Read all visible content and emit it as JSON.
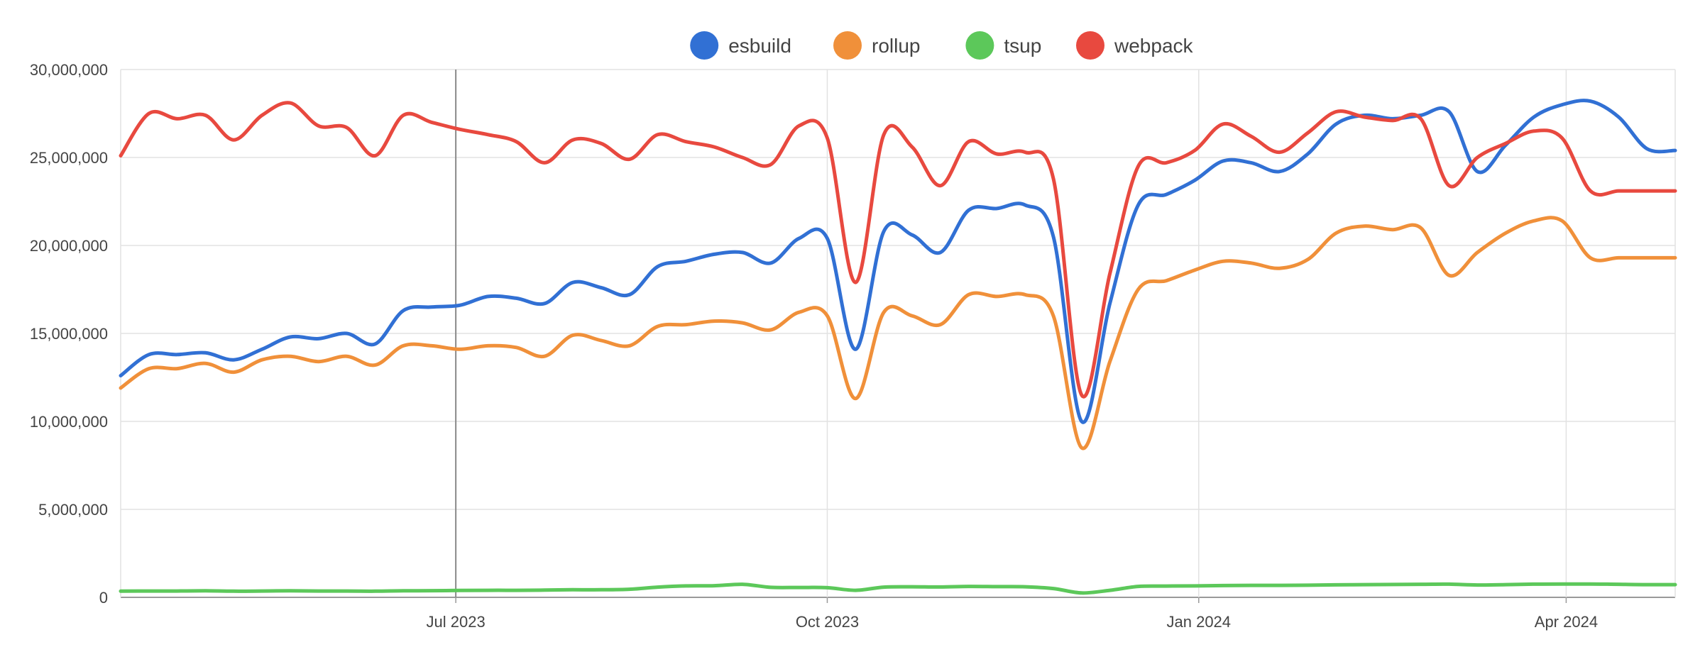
{
  "chart_data": {
    "type": "line",
    "legend_position": "top-center",
    "grid": true,
    "ylim": [
      0,
      30000000
    ],
    "y_ticks": [
      {
        "value": 0,
        "label": "0"
      },
      {
        "value": 5000000,
        "label": "5,000,000"
      },
      {
        "value": 10000000,
        "label": "10,000,000"
      },
      {
        "value": 15000000,
        "label": "15,000,000"
      },
      {
        "value": 20000000,
        "label": "20,000,000"
      },
      {
        "value": 25000000,
        "label": "25,000,000"
      },
      {
        "value": 30000000,
        "label": "30,000,000"
      }
    ],
    "xlim": [
      "2023-04-09",
      "2024-04-28"
    ],
    "x_ticks": [
      {
        "date": "2023-07-01",
        "label": "Jul 2023"
      },
      {
        "date": "2023-10-01",
        "label": "Oct 2023"
      },
      {
        "date": "2024-01-01",
        "label": "Jan 2024"
      },
      {
        "date": "2024-04-01",
        "label": "Apr 2024"
      }
    ],
    "x": [
      "2023-04-09",
      "2023-04-16",
      "2023-04-23",
      "2023-04-30",
      "2023-05-07",
      "2023-05-14",
      "2023-05-21",
      "2023-05-28",
      "2023-06-04",
      "2023-06-11",
      "2023-06-18",
      "2023-06-25",
      "2023-07-02",
      "2023-07-09",
      "2023-07-16",
      "2023-07-23",
      "2023-07-30",
      "2023-08-06",
      "2023-08-13",
      "2023-08-20",
      "2023-08-27",
      "2023-09-03",
      "2023-09-10",
      "2023-09-17",
      "2023-09-24",
      "2023-10-01",
      "2023-10-08",
      "2023-10-15",
      "2023-10-22",
      "2023-10-29",
      "2023-11-05",
      "2023-11-12",
      "2023-11-19",
      "2023-11-26",
      "2023-12-03",
      "2023-12-10",
      "2023-12-17",
      "2023-12-24",
      "2023-12-31",
      "2024-01-07",
      "2024-01-14",
      "2024-01-21",
      "2024-01-28",
      "2024-02-04",
      "2024-02-11",
      "2024-02-18",
      "2024-02-25",
      "2024-03-03",
      "2024-03-10",
      "2024-03-17",
      "2024-03-24",
      "2024-03-31",
      "2024-04-07",
      "2024-04-14",
      "2024-04-21",
      "2024-04-28"
    ],
    "series": [
      {
        "name": "esbuild",
        "color": "#3170d4",
        "values": [
          12600000,
          13800000,
          13800000,
          13900000,
          13500000,
          14100000,
          14800000,
          14700000,
          15000000,
          14400000,
          16300000,
          16500000,
          16600000,
          17100000,
          17000000,
          16700000,
          17900000,
          17600000,
          17200000,
          18800000,
          19100000,
          19500000,
          19600000,
          19000000,
          20400000,
          20400000,
          14100000,
          20800000,
          20600000,
          19600000,
          22000000,
          22100000,
          22300000,
          20500000,
          10000000,
          16700000,
          22300000,
          22900000,
          23700000,
          24800000,
          24700000,
          24200000,
          25200000,
          26900000,
          27400000,
          27200000,
          27400000,
          27600000,
          24200000,
          25700000,
          27300000,
          28000000,
          28200000,
          27300000,
          25500000,
          25400000
        ]
      },
      {
        "name": "rollup",
        "color": "#f0903a",
        "values": [
          11900000,
          13000000,
          13000000,
          13300000,
          12800000,
          13500000,
          13700000,
          13400000,
          13700000,
          13200000,
          14300000,
          14300000,
          14100000,
          14300000,
          14200000,
          13700000,
          14900000,
          14600000,
          14300000,
          15400000,
          15500000,
          15700000,
          15600000,
          15200000,
          16200000,
          16000000,
          11300000,
          16200000,
          16000000,
          15500000,
          17200000,
          17100000,
          17200000,
          16000000,
          8500000,
          13400000,
          17500000,
          18000000,
          18600000,
          19100000,
          19000000,
          18700000,
          19200000,
          20700000,
          21100000,
          20900000,
          21000000,
          18300000,
          19600000,
          20700000,
          21400000,
          21400000,
          19300000,
          19300000,
          19300000,
          19300000
        ]
      },
      {
        "name": "tsup",
        "color": "#5cc85a",
        "values": [
          350000,
          360000,
          360000,
          370000,
          350000,
          360000,
          370000,
          360000,
          360000,
          350000,
          370000,
          380000,
          390000,
          400000,
          400000,
          410000,
          430000,
          430000,
          460000,
          580000,
          650000,
          660000,
          740000,
          570000,
          560000,
          550000,
          400000,
          580000,
          600000,
          590000,
          620000,
          610000,
          600000,
          500000,
          250000,
          400000,
          620000,
          640000,
          650000,
          670000,
          680000,
          680000,
          690000,
          710000,
          720000,
          730000,
          740000,
          750000,
          700000,
          720000,
          750000,
          760000,
          760000,
          740000,
          720000,
          720000
        ]
      },
      {
        "name": "webpack",
        "color": "#e8493f",
        "values": [
          25100000,
          27500000,
          27200000,
          27400000,
          26000000,
          27400000,
          28100000,
          26800000,
          26700000,
          25100000,
          27400000,
          27000000,
          26600000,
          26300000,
          25900000,
          24700000,
          26000000,
          25800000,
          24900000,
          26300000,
          25900000,
          25600000,
          25000000,
          24600000,
          26800000,
          26100000,
          17900000,
          26300000,
          25600000,
          23400000,
          25900000,
          25200000,
          25300000,
          23800000,
          11500000,
          18400000,
          24500000,
          24700000,
          25400000,
          26900000,
          26200000,
          25300000,
          26400000,
          27600000,
          27300000,
          27100000,
          27200000,
          23400000,
          25000000,
          25800000,
          26500000,
          26100000,
          23100000,
          23100000,
          23100000,
          23100000
        ]
      }
    ]
  }
}
